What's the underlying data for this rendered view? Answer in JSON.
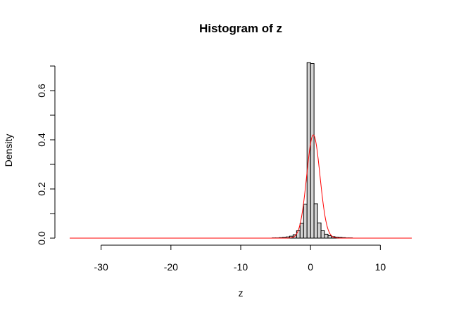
{
  "chart_data": {
    "type": "bar",
    "title": "Histogram of z",
    "xlabel": "z",
    "ylabel": "Density",
    "xlim": [
      -34.5,
      14.5
    ],
    "ylim": [
      0,
      0.7
    ],
    "xticks": [
      -30,
      -20,
      -10,
      0,
      10
    ],
    "xtick_labels": [
      "-30",
      "-20",
      "-10",
      "0",
      "10"
    ],
    "yticks": [
      0.0,
      0.2,
      0.4,
      0.6
    ],
    "ytick_labels": [
      "0.0",
      "0.2",
      "0.4",
      "0.6"
    ],
    "grid": false,
    "bar_fill": "#d3d3d3",
    "curve_color": "#ff0000",
    "bins": [
      {
        "x0": -5.5,
        "x1": -5.0,
        "density": 0.001
      },
      {
        "x0": -5.0,
        "x1": -4.5,
        "density": 0.001
      },
      {
        "x0": -4.5,
        "x1": -4.0,
        "density": 0.002
      },
      {
        "x0": -4.0,
        "x1": -3.5,
        "density": 0.003
      },
      {
        "x0": -3.5,
        "x1": -3.0,
        "density": 0.005
      },
      {
        "x0": -3.0,
        "x1": -2.5,
        "density": 0.008
      },
      {
        "x0": -2.5,
        "x1": -2.0,
        "density": 0.014
      },
      {
        "x0": -2.0,
        "x1": -1.5,
        "density": 0.03
      },
      {
        "x0": -1.5,
        "x1": -1.0,
        "density": 0.06
      },
      {
        "x0": -1.0,
        "x1": -0.5,
        "density": 0.138
      },
      {
        "x0": -0.5,
        "x1": 0.0,
        "density": 0.714
      },
      {
        "x0": 0.0,
        "x1": 0.5,
        "density": 0.71
      },
      {
        "x0": 0.5,
        "x1": 1.0,
        "density": 0.14
      },
      {
        "x0": 1.0,
        "x1": 1.5,
        "density": 0.062
      },
      {
        "x0": 1.5,
        "x1": 2.0,
        "density": 0.03
      },
      {
        "x0": 2.0,
        "x1": 2.5,
        "density": 0.016
      },
      {
        "x0": 2.5,
        "x1": 3.0,
        "density": 0.01
      },
      {
        "x0": 3.0,
        "x1": 3.5,
        "density": 0.006
      },
      {
        "x0": 3.5,
        "x1": 4.0,
        "density": 0.004
      },
      {
        "x0": 4.0,
        "x1": 4.5,
        "density": 0.003
      },
      {
        "x0": 4.5,
        "x1": 5.0,
        "density": 0.002
      },
      {
        "x0": 5.0,
        "x1": 5.5,
        "density": 0.001
      },
      {
        "x0": 5.5,
        "x1": 6.0,
        "density": 0.001
      }
    ],
    "density_curve": {
      "type": "normal",
      "mean": 0.4,
      "sd": 0.95,
      "x_range": [
        -34.5,
        14.5
      ]
    }
  }
}
